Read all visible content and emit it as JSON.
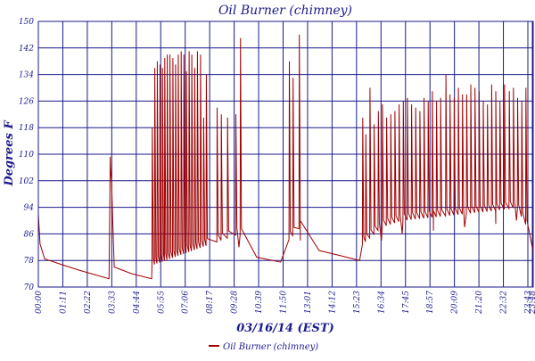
{
  "chart_data": {
    "type": "line",
    "title": "Oil Burner (chimney)",
    "xlabel": "03/16/14 (EST)",
    "ylabel": "Degrees F",
    "ylim": [
      70,
      150
    ],
    "yticks": [
      70,
      78,
      86,
      94,
      102,
      110,
      118,
      126,
      134,
      142,
      150
    ],
    "x_range_hours": [
      0,
      23.8
    ],
    "xtick_labels": [
      "00:00",
      "01:11",
      "02:22",
      "03:33",
      "04:44",
      "05:55",
      "07:06",
      "08:17",
      "09:28",
      "10:39",
      "11:50",
      "13:01",
      "14:12",
      "15:23",
      "16:34",
      "17:45",
      "18:57",
      "20:09",
      "21:20",
      "22:32",
      "23:43",
      "23:48"
    ],
    "grid": true,
    "legend_position": "bottom",
    "colors": {
      "series": "#a00000",
      "axis": "#1a1a8c",
      "grid": "#1a1a8c"
    },
    "series": [
      {
        "name": "Oil Burner (chimney)",
        "baseline": [
          [
            0.0,
            92
          ],
          [
            0.08,
            83
          ],
          [
            0.3,
            78.5
          ],
          [
            1.0,
            77
          ],
          [
            2.0,
            75
          ],
          [
            3.4,
            72.5
          ],
          [
            3.45,
            106
          ],
          [
            3.65,
            76
          ],
          [
            4.5,
            74
          ],
          [
            5.45,
            72.5
          ],
          [
            9.65,
            82
          ],
          [
            10.5,
            79
          ],
          [
            11.65,
            77.5
          ],
          [
            12.6,
            84
          ],
          [
            13.5,
            81
          ],
          [
            14.5,
            79.5
          ],
          [
            15.45,
            78
          ],
          [
            16.5,
            84
          ],
          [
            17.5,
            86
          ],
          [
            19.0,
            87
          ],
          [
            20.5,
            88
          ],
          [
            22.0,
            89
          ],
          [
            23.0,
            90
          ],
          [
            23.8,
            80.5
          ]
        ],
        "peaks": [
          [
            3.47,
            106
          ],
          [
            5.48,
            118
          ],
          [
            5.6,
            136
          ],
          [
            5.72,
            138
          ],
          [
            5.85,
            137
          ],
          [
            5.97,
            136
          ],
          [
            6.08,
            139
          ],
          [
            6.2,
            140
          ],
          [
            6.33,
            140
          ],
          [
            6.47,
            139
          ],
          [
            6.6,
            137
          ],
          [
            6.73,
            140
          ],
          [
            6.87,
            141
          ],
          [
            7.0,
            140
          ],
          [
            7.12,
            135
          ],
          [
            7.25,
            141
          ],
          [
            7.38,
            140
          ],
          [
            7.52,
            136
          ],
          [
            7.65,
            141
          ],
          [
            7.8,
            140
          ],
          [
            7.95,
            121
          ],
          [
            8.08,
            134
          ],
          [
            8.6,
            124
          ],
          [
            8.8,
            122
          ],
          [
            9.1,
            121
          ],
          [
            9.5,
            122
          ],
          [
            9.72,
            145
          ],
          [
            12.07,
            138
          ],
          [
            12.25,
            133
          ],
          [
            12.55,
            146
          ],
          [
            15.6,
            121
          ],
          [
            15.75,
            116
          ],
          [
            15.95,
            130
          ],
          [
            16.15,
            119
          ],
          [
            16.35,
            123
          ],
          [
            16.55,
            125
          ],
          [
            16.75,
            121
          ],
          [
            16.95,
            122
          ],
          [
            17.15,
            123
          ],
          [
            17.35,
            125
          ],
          [
            17.55,
            126
          ],
          [
            17.75,
            127
          ],
          [
            17.95,
            125
          ],
          [
            18.15,
            124
          ],
          [
            18.35,
            123
          ],
          [
            18.55,
            127
          ],
          [
            18.75,
            126
          ],
          [
            18.95,
            129
          ],
          [
            19.15,
            126
          ],
          [
            19.35,
            127
          ],
          [
            19.6,
            134
          ],
          [
            19.8,
            128
          ],
          [
            20.0,
            127
          ],
          [
            20.2,
            130
          ],
          [
            20.4,
            128
          ],
          [
            20.6,
            128
          ],
          [
            20.8,
            131
          ],
          [
            21.0,
            130
          ],
          [
            21.2,
            129
          ],
          [
            21.4,
            126
          ],
          [
            21.6,
            125
          ],
          [
            21.8,
            131
          ],
          [
            22.0,
            129
          ],
          [
            22.2,
            126
          ],
          [
            22.42,
            131
          ],
          [
            22.65,
            129
          ],
          [
            22.85,
            130
          ],
          [
            23.05,
            127
          ],
          [
            23.25,
            126
          ],
          [
            23.45,
            130
          ]
        ]
      }
    ]
  }
}
